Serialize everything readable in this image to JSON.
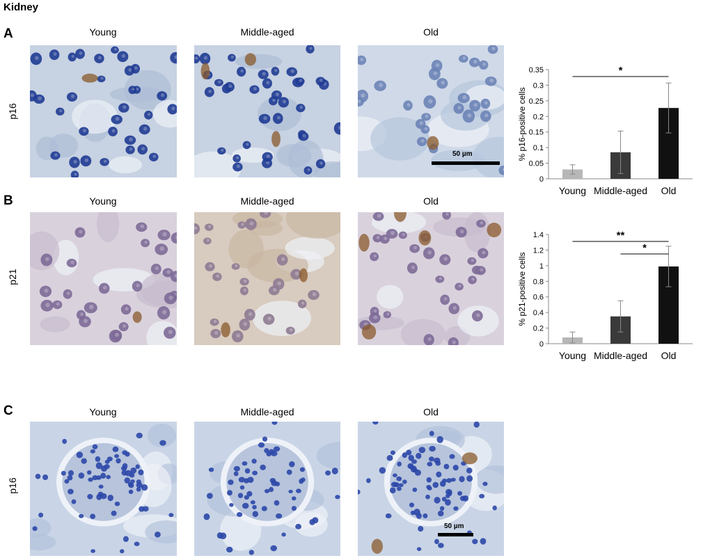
{
  "figure_title": "Kidney",
  "colors": {
    "p16_bg": "#c7d2e2",
    "p16_nucleus": "#1f3b93",
    "p21_bg": "#d9d2dd",
    "p21_nucleus": "#7d6a97",
    "brown_stain": "#8a5a2b",
    "bar_young": "#b7b7b7",
    "bar_middle": "#3a3a3a",
    "bar_old": "#111111"
  },
  "panels": [
    {
      "letter": "A",
      "marker": "p16",
      "columns": [
        "Young",
        "Middle-aged",
        "Old"
      ],
      "scale_bar": "50 µm"
    },
    {
      "letter": "B",
      "marker": "p21",
      "columns": [
        "Young",
        "Middle-aged",
        "Old"
      ]
    },
    {
      "letter": "C",
      "marker": "p16",
      "columns": [
        "Young",
        "Middle-aged",
        "Old"
      ],
      "scale_bar": "50 µm"
    }
  ],
  "chart_data": [
    {
      "type": "bar",
      "title": "",
      "ylabel": "% p16-positive cells",
      "xlabel": "",
      "categories": [
        "Young",
        "Middle-aged",
        "Old"
      ],
      "values": [
        0.03,
        0.085,
        0.227
      ],
      "errors": [
        0.015,
        0.068,
        0.08
      ],
      "ylim": [
        0,
        0.35
      ],
      "yticks": [
        "0",
        "0.05",
        "0.1",
        "0.15",
        "0.2",
        "0.25",
        "0.3",
        "0.35"
      ],
      "ytick_values": [
        0,
        0.05,
        0.1,
        0.15,
        0.2,
        0.25,
        0.3,
        0.35
      ],
      "significance": [
        {
          "from": "Young",
          "to": "Old",
          "label": "*"
        }
      ]
    },
    {
      "type": "bar",
      "title": "",
      "ylabel": "% p21-positive cells",
      "xlabel": "",
      "categories": [
        "Young",
        "Middle-aged",
        "Old"
      ],
      "values": [
        0.08,
        0.35,
        0.99
      ],
      "errors": [
        0.07,
        0.2,
        0.26
      ],
      "ylim": [
        0,
        1.4
      ],
      "yticks": [
        "0",
        "0.2",
        "0.4",
        "0.6",
        "0.8",
        "1",
        "1.2",
        "1.4"
      ],
      "ytick_values": [
        0,
        0.2,
        0.4,
        0.6,
        0.8,
        1,
        1.2,
        1.4
      ],
      "significance": [
        {
          "from": "Young",
          "to": "Old",
          "label": "**"
        },
        {
          "from": "Middle-aged",
          "to": "Old",
          "label": "*"
        }
      ]
    }
  ]
}
